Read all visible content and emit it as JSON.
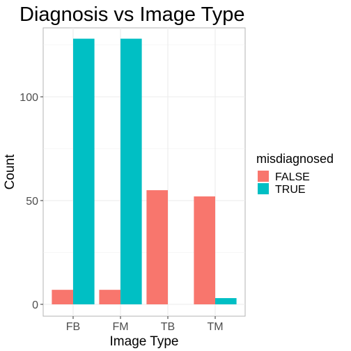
{
  "chart_data": {
    "type": "bar",
    "title": "Diagnosis vs Image Type",
    "xlabel": "Image Type",
    "ylabel": "Count",
    "categories": [
      "FB",
      "FM",
      "TB",
      "TM"
    ],
    "series": [
      {
        "name": "FALSE",
        "color": "#F8766D",
        "values": [
          7,
          7,
          55,
          52
        ]
      },
      {
        "name": "TRUE",
        "color": "#00BFC4",
        "values": [
          128,
          128,
          0,
          3
        ]
      }
    ],
    "ylim": [
      0,
      135
    ],
    "yticks": [
      0,
      50,
      100
    ],
    "grid": true,
    "legend": {
      "title": "misdiagnosed",
      "position": "right"
    }
  }
}
